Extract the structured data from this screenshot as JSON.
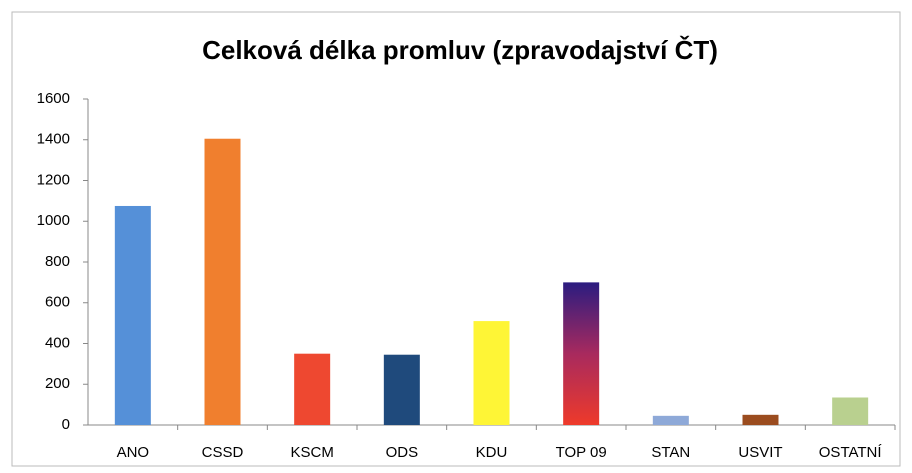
{
  "chart_data": {
    "type": "bar",
    "title": "Celková délka promluv (zpravodajství ČT)",
    "categories": [
      "ANO",
      "CSSD",
      "KSCM",
      "ODS",
      "KDU",
      "TOP 09",
      "STAN",
      "USVIT",
      "OSTATNÍ"
    ],
    "values": [
      1075,
      1405,
      350,
      345,
      510,
      700,
      45,
      50,
      135
    ],
    "colors": [
      "#5590d8",
      "#f07f2e",
      "#ee4830",
      "#1f4a7c",
      "#fef536",
      [
        "#2b1c80",
        "#a82a5e",
        "#ee3a2a"
      ],
      "#8ea9d8",
      "#9b4c1f",
      "#b9d08f"
    ],
    "ylim": [
      0,
      1600
    ],
    "yticks": [
      0,
      200,
      400,
      600,
      800,
      1000,
      1200,
      1400,
      1600
    ],
    "grid": false
  }
}
